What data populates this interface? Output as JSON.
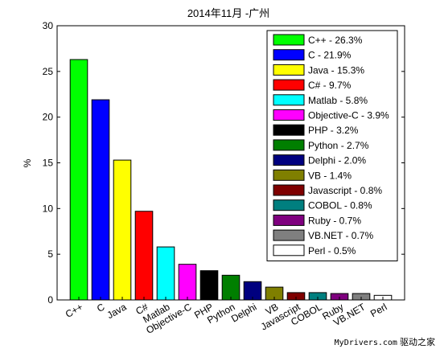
{
  "chart_data": {
    "type": "bar",
    "title": "2014年11月 -广州",
    "xlabel": "",
    "ylabel": "%",
    "ylim": [
      0,
      30
    ],
    "yticks": [
      0,
      5,
      10,
      15,
      20,
      25,
      30
    ],
    "grid": false,
    "legend_position": "top-right",
    "categories": [
      "C++",
      "C",
      "Java",
      "C#",
      "Matlab",
      "Objective-C",
      "PHP",
      "Python",
      "Delphi",
      "VB",
      "Javascript",
      "COBOL",
      "Ruby",
      "VB.NET",
      "Perl"
    ],
    "values": [
      26.3,
      21.9,
      15.3,
      9.7,
      5.8,
      3.9,
      3.2,
      2.7,
      2.0,
      1.4,
      0.8,
      0.8,
      0.7,
      0.7,
      0.5
    ],
    "colors": [
      "#00ff00",
      "#0000ff",
      "#ffff00",
      "#ff0000",
      "#00ffff",
      "#ff00ff",
      "#000000",
      "#007f00",
      "#00007f",
      "#7f7f00",
      "#7f0000",
      "#007f7f",
      "#7f007f",
      "#7f7f7f",
      "#ffffff"
    ],
    "legend": [
      "C++ - 26.3%",
      "C - 21.9%",
      "Java - 15.3%",
      "C# - 9.7%",
      "Matlab - 5.8%",
      "Objective-C - 3.9%",
      "PHP - 3.2%",
      "Python - 2.7%",
      "Delphi - 2.0%",
      "VB - 1.4%",
      "Javascript - 0.8%",
      "COBOL - 0.8%",
      "Ruby - 0.7%",
      "VB.NET - 0.7%",
      "Perl - 0.5%"
    ]
  },
  "watermark": {
    "url": "MyDrivers.com",
    "site_name": "驱动之家"
  }
}
